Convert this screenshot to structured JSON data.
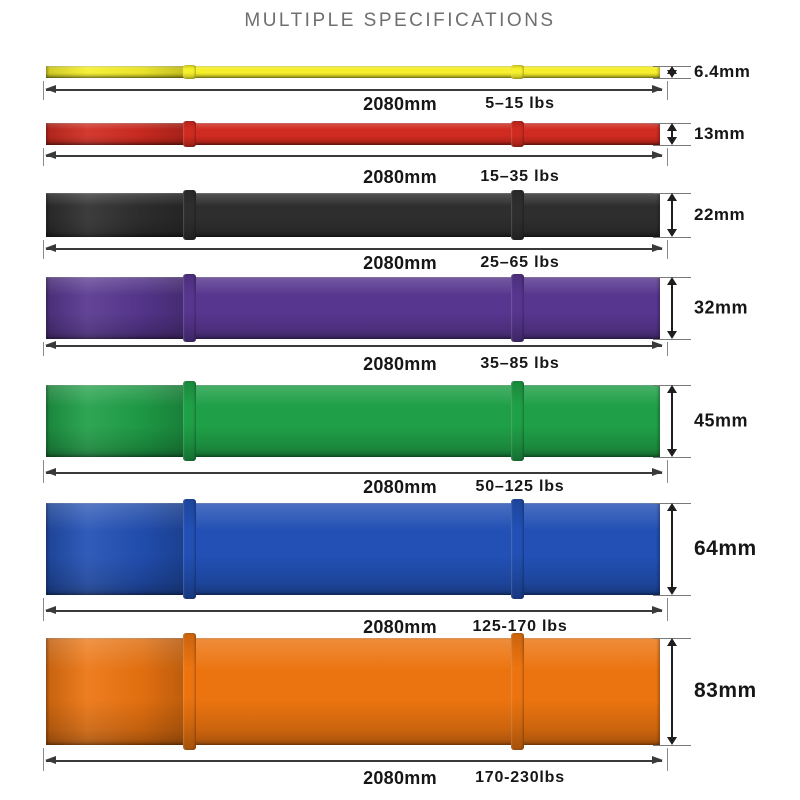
{
  "title": "MULTIPLE SPECIFICATIONS",
  "bands": [
    {
      "name": "yellow",
      "color": "#F6EF2B",
      "length": "2080mm",
      "weight": "5–15 lbs",
      "width": "6.4mm"
    },
    {
      "name": "red",
      "color": "#D02B20",
      "length": "2080mm",
      "weight": "15–35 lbs",
      "width": "13mm"
    },
    {
      "name": "black",
      "color": "#2E2E2E",
      "length": "2080mm",
      "weight": "25–65 lbs",
      "width": "22mm"
    },
    {
      "name": "purple",
      "color": "#57368F",
      "length": "2080mm",
      "weight": "35–85 lbs",
      "width": "32mm"
    },
    {
      "name": "green",
      "color": "#1F9F47",
      "length": "2080mm",
      "weight": "50–125 lbs",
      "width": "45mm"
    },
    {
      "name": "blue",
      "color": "#2250B4",
      "length": "2080mm",
      "weight": "125-170 lbs",
      "width": "64mm"
    },
    {
      "name": "orange",
      "color": "#EC7410",
      "length": "2080mm",
      "weight": "170-230lbs",
      "width": "83mm"
    }
  ]
}
